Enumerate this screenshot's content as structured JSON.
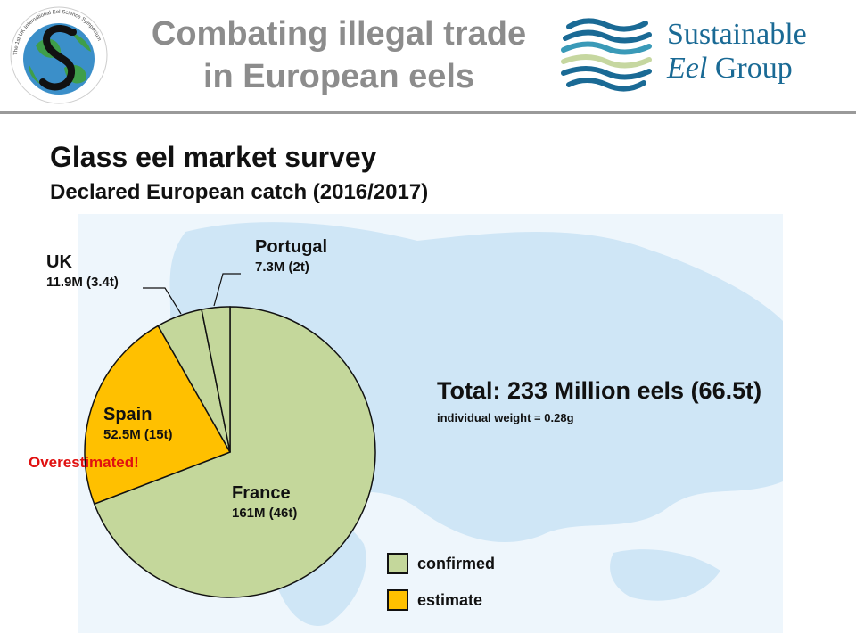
{
  "header": {
    "title_line1": "Combating illegal trade",
    "title_line2": "in European eels",
    "symposium_logo": {
      "icon": "globe-eel-s-icon",
      "ring_text": "The 1st UK International Eel Science Symposium"
    },
    "org_logo": {
      "line1": "Sustainable",
      "line2_italic": "Eel",
      "line2_rest": " Group",
      "icon": "waves-icon"
    }
  },
  "slide": {
    "title": "Glass eel market survey",
    "subtitle": "Declared European catch (2016/2017)"
  },
  "colors": {
    "confirmed": "#c4d79b",
    "estimate": "#ffc000",
    "warning": "#e01010",
    "brand": "#1a6a95",
    "title_grey": "#8c8c8c"
  },
  "chart_data": {
    "type": "pie",
    "slices": [
      {
        "name": "France",
        "detail": "161M (46t)",
        "value": 161,
        "tonnes": 46,
        "status": "confirmed"
      },
      {
        "name": "Spain",
        "detail": "52.5M (15t)",
        "value": 52.5,
        "tonnes": 15,
        "status": "estimate"
      },
      {
        "name": "UK",
        "detail": "11.9M (3.4t)",
        "value": 11.9,
        "tonnes": 3.4,
        "status": "confirmed"
      },
      {
        "name": "Portugal",
        "detail": "7.3M (2t)",
        "value": 7.3,
        "tonnes": 2,
        "status": "confirmed"
      }
    ],
    "annotation": "Overestimated!",
    "total_text": "Total: 233 Million eels (66.5t)",
    "note": "individual weight = 0.28g",
    "legend": [
      {
        "label": "confirmed",
        "status": "confirmed"
      },
      {
        "label": "estimate",
        "status": "estimate"
      }
    ]
  }
}
